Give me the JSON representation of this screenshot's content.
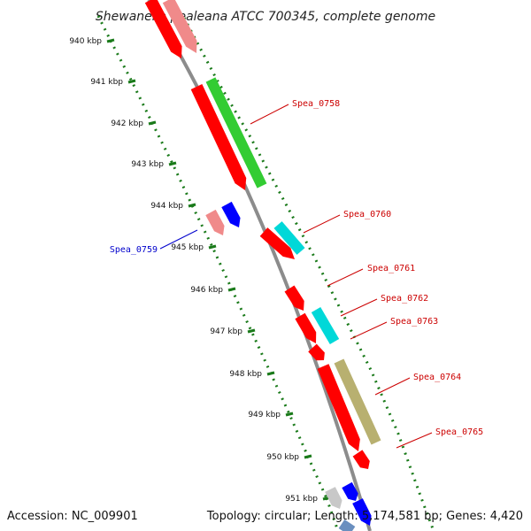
{
  "title": "Shewanella pealeana ATCC 700345, complete genome",
  "accession": "Accession: NC_009901",
  "summary": "Topology: circular; Length: 5,174,581 bp; Genes: 4,420",
  "colors": {
    "backbone": "#8c8c8c",
    "ticks": "#1a7a1a",
    "forward_cds": "#ff0000",
    "reverse_cds": "#0000ff",
    "pseudo": "#f08a8a",
    "green": "#33cc33",
    "cyan": "#00d8d8",
    "olive": "#b8b070",
    "grey": "#c8c8c8",
    "label_forward": "#cc0000",
    "label_reverse": "#0000cc"
  },
  "ticks": [
    {
      "label": "940 kbp"
    },
    {
      "label": "941 kbp"
    },
    {
      "label": "942 kbp"
    },
    {
      "label": "943 kbp"
    },
    {
      "label": "944 kbp"
    },
    {
      "label": "945 kbp"
    },
    {
      "label": "946 kbp"
    },
    {
      "label": "947 kbp"
    },
    {
      "label": "948 kbp"
    },
    {
      "label": "949 kbp"
    },
    {
      "label": "950 kbp"
    },
    {
      "label": "951 kbp"
    }
  ],
  "gene_labels": [
    {
      "name": "Spea_0758",
      "strand": "forward"
    },
    {
      "name": "Spea_0759",
      "strand": "reverse"
    },
    {
      "name": "Spea_0760",
      "strand": "forward"
    },
    {
      "name": "Spea_0761",
      "strand": "forward"
    },
    {
      "name": "Spea_0762",
      "strand": "forward"
    },
    {
      "name": "Spea_0763",
      "strand": "forward"
    },
    {
      "name": "Spea_0764",
      "strand": "forward"
    },
    {
      "name": "Spea_0765",
      "strand": "forward"
    }
  ]
}
